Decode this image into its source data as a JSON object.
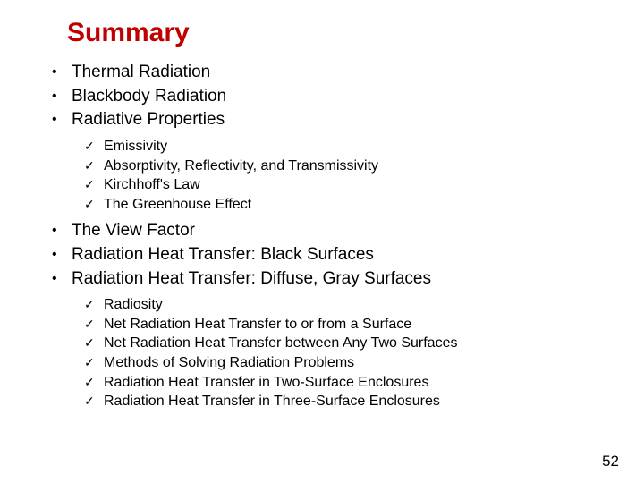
{
  "title": "Summary",
  "colors": {
    "title": "#c00000",
    "text": "#000000",
    "background": "#ffffff"
  },
  "bullets": {
    "b0": "Thermal Radiation",
    "b1": "Blackbody Radiation",
    "b2": "Radiative Properties",
    "b3": "The View Factor",
    "b4": "Radiation Heat Transfer: Black Surfaces",
    "b5": "Radiation Heat Transfer: Diffuse, Gray Surfaces"
  },
  "sub1": {
    "s0": "Emissivity",
    "s1": "Absorptivity, Reflectivity, and Transmissivity",
    "s2": "Kirchhoff's Law",
    "s3": "The Greenhouse Effect"
  },
  "sub2": {
    "s0": "Radiosity",
    "s1": "Net Radiation Heat Transfer to or from a Surface",
    "s2": "Net Radiation Heat Transfer between Any Two Surfaces",
    "s3": "Methods of Solving Radiation Problems",
    "s4": "Radiation Heat Transfer in Two-Surface Enclosures",
    "s5": "Radiation Heat Transfer in Three-Surface Enclosures"
  },
  "marks": {
    "bullet": "•",
    "check": "✓"
  },
  "page_number": "52"
}
